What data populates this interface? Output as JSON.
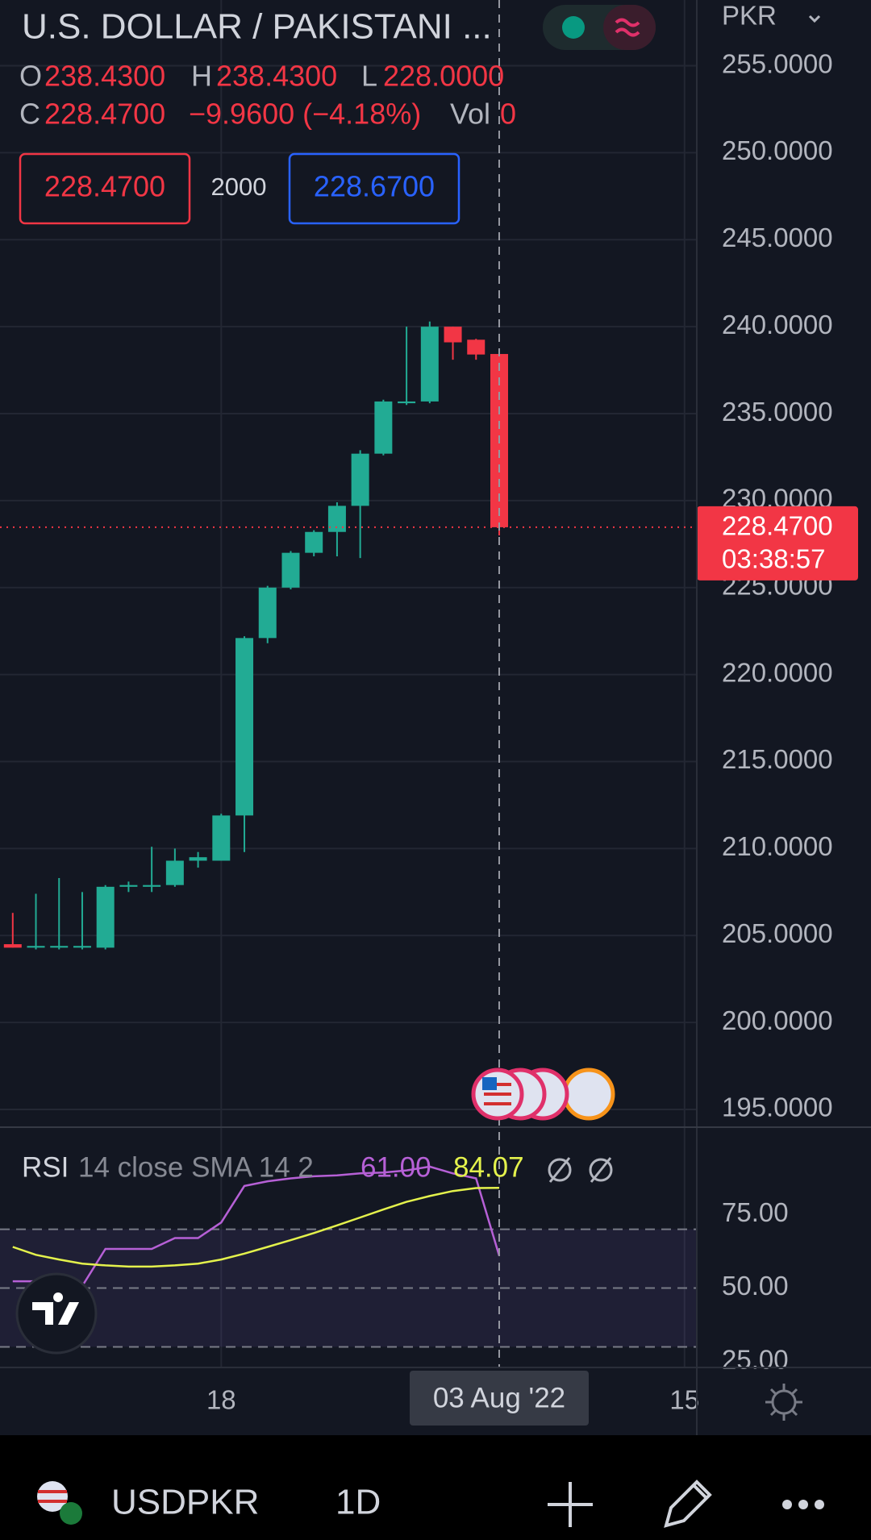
{
  "chart_data": [
    {
      "type": "candlestick",
      "title": "U.S. DOLLAR / PAKISTANI ...",
      "currency": "PKR",
      "x": [
        0,
        1,
        2,
        3,
        4,
        5,
        6,
        7,
        8,
        9,
        10,
        11,
        12,
        13,
        14,
        15,
        16,
        17,
        18,
        19,
        20,
        21
      ],
      "open": [
        204.5,
        204.3,
        204.3,
        204.3,
        204.3,
        207.8,
        207.8,
        207.9,
        209.3,
        209.3,
        211.9,
        222.1,
        225.0,
        227.0,
        228.2,
        229.7,
        232.7,
        235.6,
        235.7,
        240.0,
        239.25,
        238.43
      ],
      "high": [
        206.3,
        207.4,
        208.3,
        207.5,
        207.9,
        208.1,
        210.1,
        210.0,
        209.8,
        212.0,
        222.2,
        225.1,
        227.1,
        228.3,
        229.9,
        232.9,
        235.8,
        240.0,
        240.3,
        240.0,
        239.3,
        238.43
      ],
      "low": [
        204.3,
        204.2,
        204.2,
        204.2,
        204.2,
        207.5,
        207.5,
        207.8,
        208.9,
        209.3,
        209.8,
        221.8,
        224.9,
        226.8,
        226.8,
        226.7,
        232.6,
        235.5,
        235.6,
        238.1,
        238.1,
        228.0
      ],
      "close": [
        204.3,
        204.4,
        204.4,
        204.4,
        207.8,
        207.9,
        207.9,
        209.3,
        209.5,
        211.9,
        222.1,
        225.0,
        227.0,
        228.2,
        229.7,
        232.7,
        235.7,
        235.7,
        240.0,
        239.1,
        238.4,
        228.47
      ],
      "up_color": "#22ab94",
      "down_color": "#f23645",
      "xlim": [
        -0.55,
        29.53
      ],
      "xticks": [
        {
          "value": 9,
          "label": "18"
        },
        {
          "value": 29,
          "label": "15"
        }
      ],
      "ylim": [
        193.98,
        258.78
      ],
      "yticks": [
        {
          "value": 195,
          "label": "195.0000"
        },
        {
          "value": 200,
          "label": "200.0000"
        },
        {
          "value": 205,
          "label": "205.0000"
        },
        {
          "value": 210,
          "label": "210.0000"
        },
        {
          "value": 215,
          "label": "215.0000"
        },
        {
          "value": 220,
          "label": "220.0000"
        },
        {
          "value": 225,
          "label": "225.0000"
        },
        {
          "value": 230,
          "label": "230.0000"
        },
        {
          "value": 235,
          "label": "235.0000"
        },
        {
          "value": 240,
          "label": "240.0000"
        },
        {
          "value": 245,
          "label": "245.0000"
        },
        {
          "value": 250,
          "label": "250.0000"
        },
        {
          "value": 255,
          "label": "255.0000"
        }
      ],
      "grid": true,
      "last_price": {
        "value": 228.47,
        "label": "228.4700",
        "countdown": "03:38:57"
      },
      "crosshair": {
        "x": 21,
        "label": "03 Aug '22"
      },
      "legend": {
        "ohlc": [
          {
            "key": "O",
            "value": "238.4300"
          },
          {
            "key": "H",
            "value": "238.4300"
          },
          {
            "key": "L",
            "value": "228.0000"
          },
          {
            "key": "C",
            "value": "228.4700"
          }
        ],
        "change": "−9.9600 (−4.18%)",
        "volume_key": "Vol",
        "volume": "0"
      }
    },
    {
      "type": "line",
      "name": "RSI",
      "params": "14 close SMA 14 2",
      "x": [
        0,
        1,
        2,
        3,
        4,
        5,
        6,
        7,
        8,
        9,
        10,
        11,
        12,
        13,
        14,
        15,
        16,
        17,
        18,
        19,
        20,
        21
      ],
      "series": [
        {
          "color": "#b660d6",
          "values": [
            52.3,
            52.3,
            52.3,
            50.7,
            63.3,
            63.3,
            63.3,
            67,
            67,
            72.3,
            84.7,
            86.3,
            87.3,
            88,
            88.3,
            89,
            89.3,
            90,
            91.3,
            89,
            87.3,
            61
          ],
          "last_label": "61.00"
        },
        {
          "color": "#e4f24c",
          "values": [
            64,
            61.3,
            59.7,
            58.3,
            57.7,
            57.3,
            57.3,
            57.7,
            58.3,
            59.7,
            61.7,
            64,
            66.3,
            68.7,
            71.3,
            74,
            76.7,
            79.3,
            81.3,
            83,
            84,
            84.07
          ],
          "last_label": "84.07"
        }
      ],
      "xlim": [
        -0.55,
        29.53
      ],
      "ylim": [
        23,
        104.7
      ],
      "yticks": [
        {
          "value": 25,
          "label": "25.00"
        },
        {
          "value": 50,
          "label": "50.00"
        },
        {
          "value": 75,
          "label": "75.00"
        }
      ],
      "band": [
        30,
        70
      ],
      "midline": 50
    }
  ],
  "trade": {
    "sell": "228.4700",
    "spread": "2000",
    "buy": "228.6700"
  },
  "toolbar": {
    "symbol": "USDPKR",
    "interval": "1D"
  }
}
